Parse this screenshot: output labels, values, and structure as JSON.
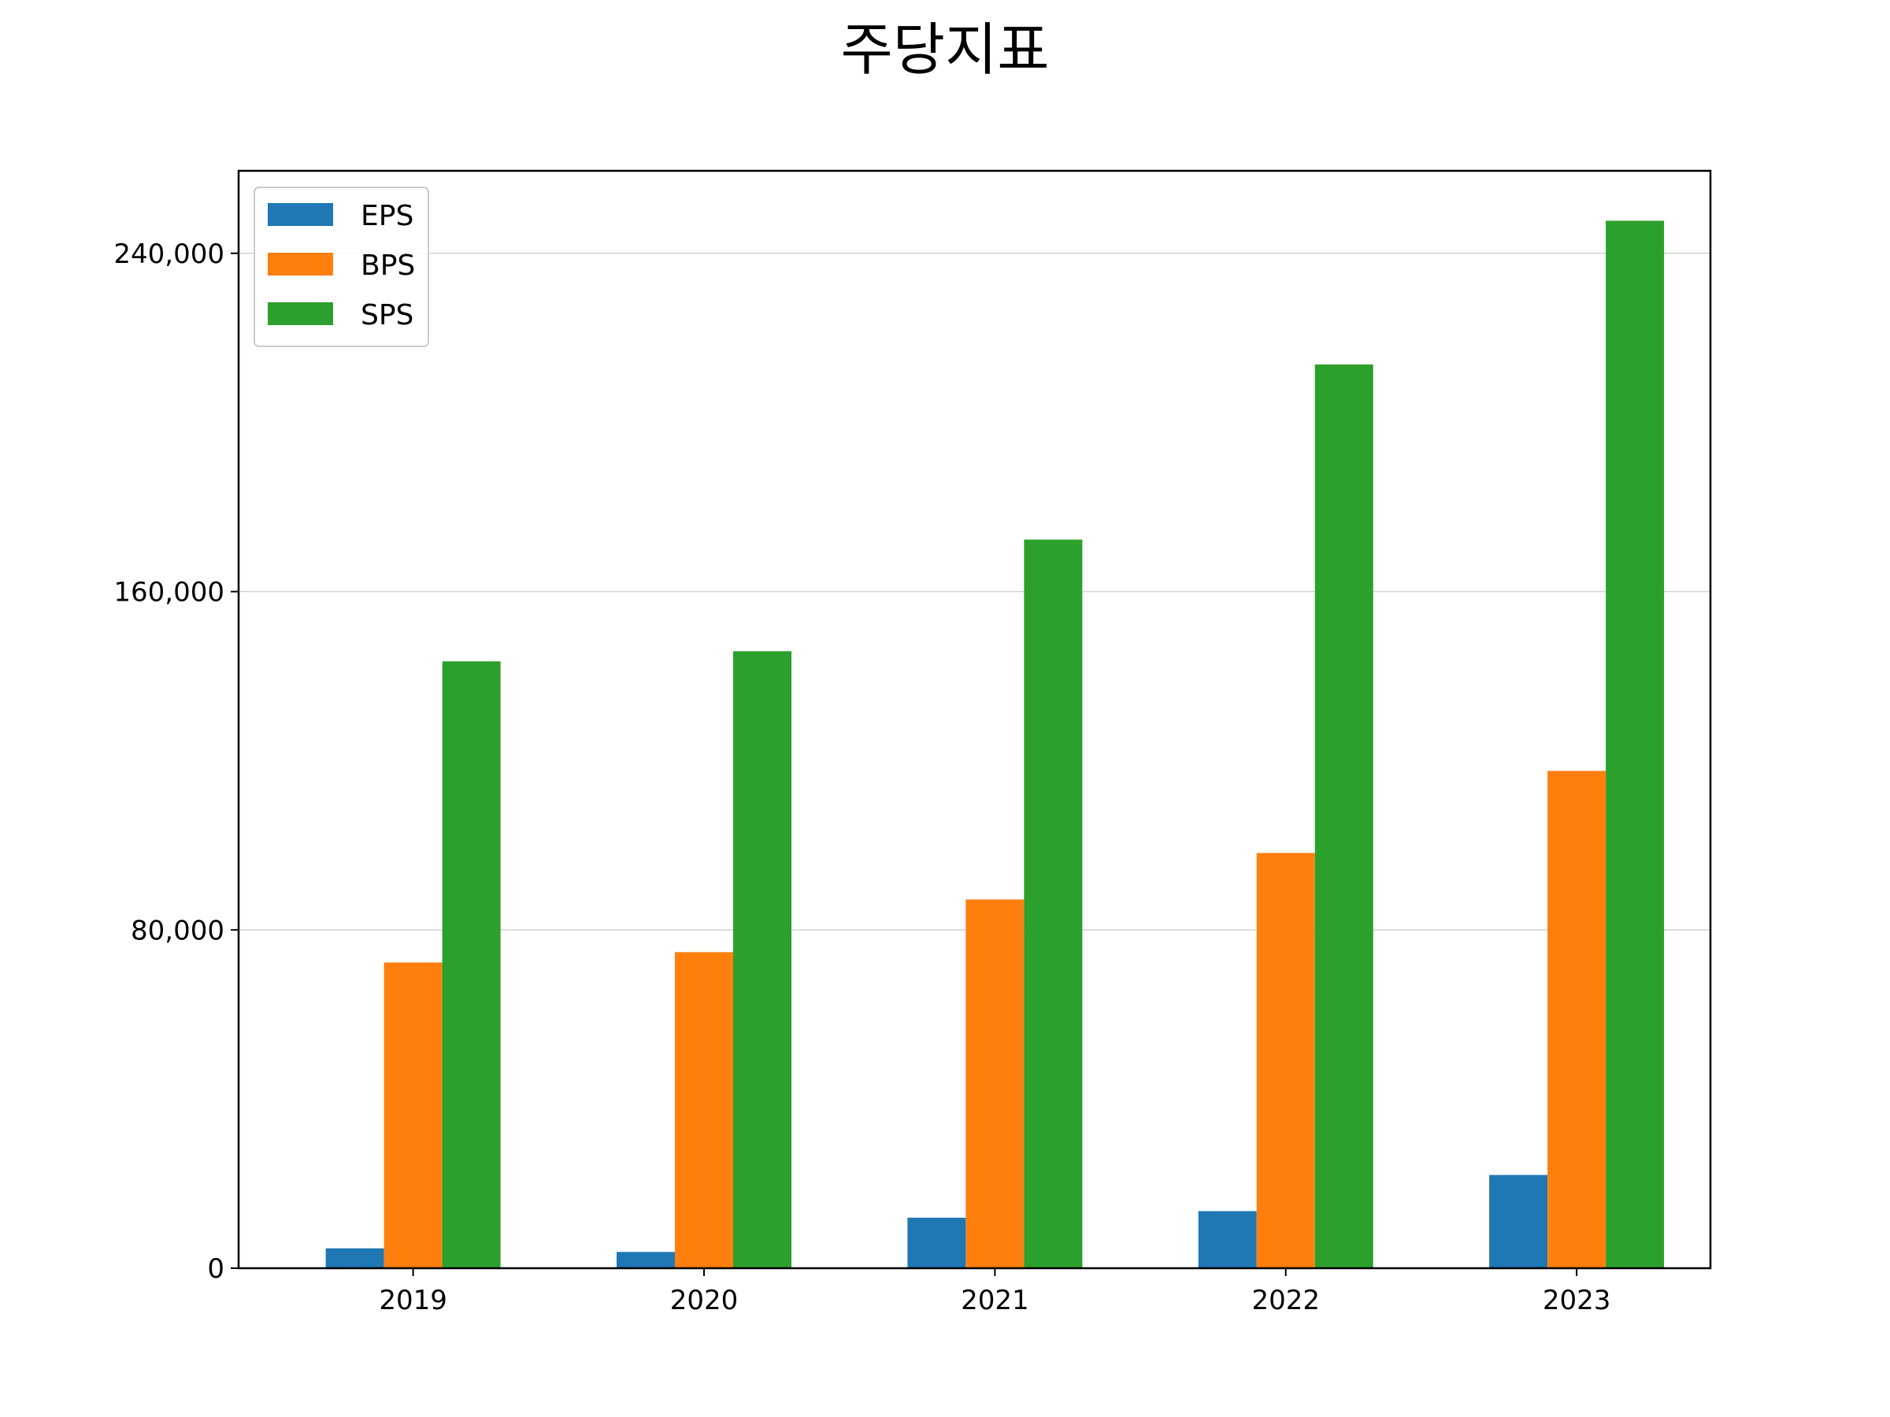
{
  "chart_data": {
    "type": "bar",
    "title": "주당지표",
    "xlabel": "",
    "ylabel": "",
    "categories": [
      "2019",
      "2020",
      "2021",
      "2022",
      "2023"
    ],
    "series": [
      {
        "name": "EPS",
        "color": "#1f77b4",
        "values": [
          4700,
          3850,
          11950,
          13500,
          22050
        ]
      },
      {
        "name": "BPS",
        "color": "#ff7f0e",
        "values": [
          72300,
          74750,
          87200,
          98200,
          117600
        ]
      },
      {
        "name": "SPS",
        "color": "#2ca02c",
        "values": [
          143500,
          145900,
          172300,
          213700,
          247700
        ]
      }
    ],
    "ylim": [
      0,
      259500
    ],
    "yticks": [
      0,
      80000,
      160000,
      240000
    ],
    "ytick_labels": [
      "0",
      "80,000",
      "160,000",
      "240,000"
    ],
    "grid": "y-major",
    "legend_position": "top-left"
  }
}
